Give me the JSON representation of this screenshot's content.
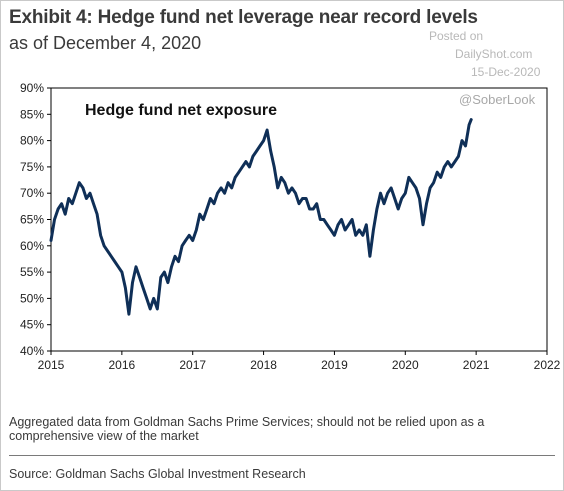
{
  "header": {
    "title": "Exhibit 4: Hedge fund net leverage near record levels",
    "subtitle": "as of December 4, 2020"
  },
  "watermark": {
    "posted": "Posted on",
    "site": "DailyShot.com",
    "date": "15-Dec-2020",
    "handle": "@SoberLook"
  },
  "footnote": "Aggregated data from Goldman Sachs Prime Services; should not be relied upon as a comprehensive view of the market",
  "source": "Source: Goldman Sachs Global Investment Research",
  "colors": {
    "line": "#0f2f57",
    "axis": "#000000",
    "text": "#3a3a3a"
  },
  "chart_data": {
    "type": "line",
    "title": "Hedge fund net exposure",
    "xlabel": "",
    "ylabel": "",
    "xlim": [
      2015,
      2022
    ],
    "ylim": [
      40,
      90
    ],
    "x_ticks": [
      "2015",
      "2016",
      "2017",
      "2018",
      "2019",
      "2020",
      "2021",
      "2022"
    ],
    "y_ticks": [
      "40%",
      "45%",
      "50%",
      "55%",
      "60%",
      "65%",
      "70%",
      "75%",
      "80%",
      "85%",
      "90%"
    ],
    "grid": false,
    "legend": "none",
    "series": [
      {
        "x": [
          2015.0,
          2015.05,
          2015.1,
          2015.15,
          2015.2,
          2015.25,
          2015.3,
          2015.35,
          2015.4,
          2015.45,
          2015.5,
          2015.55,
          2015.6,
          2015.65,
          2015.7,
          2015.75,
          2015.8,
          2015.85,
          2015.9,
          2015.95,
          2016.0,
          2016.05,
          2016.1,
          2016.15,
          2016.2,
          2016.25,
          2016.3,
          2016.35,
          2016.4,
          2016.45,
          2016.5,
          2016.55,
          2016.6,
          2016.65,
          2016.7,
          2016.75,
          2016.8,
          2016.85,
          2016.9,
          2016.95,
          2017.0,
          2017.05,
          2017.1,
          2017.15,
          2017.2,
          2017.25,
          2017.3,
          2017.35,
          2017.4,
          2017.45,
          2017.5,
          2017.55,
          2017.6,
          2017.65,
          2017.7,
          2017.75,
          2017.8,
          2017.85,
          2017.9,
          2017.95,
          2018.0,
          2018.05,
          2018.1,
          2018.15,
          2018.2,
          2018.25,
          2018.3,
          2018.35,
          2018.4,
          2018.45,
          2018.5,
          2018.55,
          2018.6,
          2018.65,
          2018.7,
          2018.75,
          2018.8,
          2018.85,
          2018.9,
          2018.95,
          2019.0,
          2019.05,
          2019.1,
          2019.15,
          2019.2,
          2019.25,
          2019.3,
          2019.35,
          2019.4,
          2019.45,
          2019.5,
          2019.55,
          2019.6,
          2019.65,
          2019.7,
          2019.75,
          2019.8,
          2019.85,
          2019.9,
          2019.95,
          2020.0,
          2020.05,
          2020.1,
          2020.15,
          2020.2,
          2020.25,
          2020.3,
          2020.35,
          2020.4,
          2020.45,
          2020.5,
          2020.55,
          2020.6,
          2020.65,
          2020.7,
          2020.75,
          2020.8,
          2020.85,
          2020.9,
          2020.93
        ],
        "values": [
          61,
          65,
          67,
          68,
          66,
          69,
          68,
          70,
          72,
          71,
          69,
          70,
          68,
          66,
          62,
          60,
          59,
          58,
          57,
          56,
          55,
          52,
          47,
          53,
          56,
          54,
          52,
          50,
          48,
          50,
          48,
          54,
          55,
          53,
          56,
          58,
          57,
          60,
          61,
          62,
          61,
          63,
          66,
          65,
          67,
          69,
          68,
          70,
          71,
          70,
          72,
          71,
          73,
          74,
          75,
          76,
          75,
          77,
          78,
          79,
          80,
          82,
          78,
          75,
          71,
          73,
          72,
          70,
          71,
          70,
          68,
          69,
          69,
          67,
          67,
          68,
          65,
          65,
          64,
          63,
          62,
          64,
          65,
          63,
          64,
          65,
          62,
          63,
          62,
          64,
          58,
          63,
          67,
          70,
          68,
          70,
          71,
          69,
          67,
          69,
          70,
          73,
          72,
          71,
          69,
          64,
          68,
          71,
          72,
          74,
          73,
          75,
          76,
          75,
          76,
          77,
          80,
          79,
          83,
          84
        ]
      }
    ]
  }
}
